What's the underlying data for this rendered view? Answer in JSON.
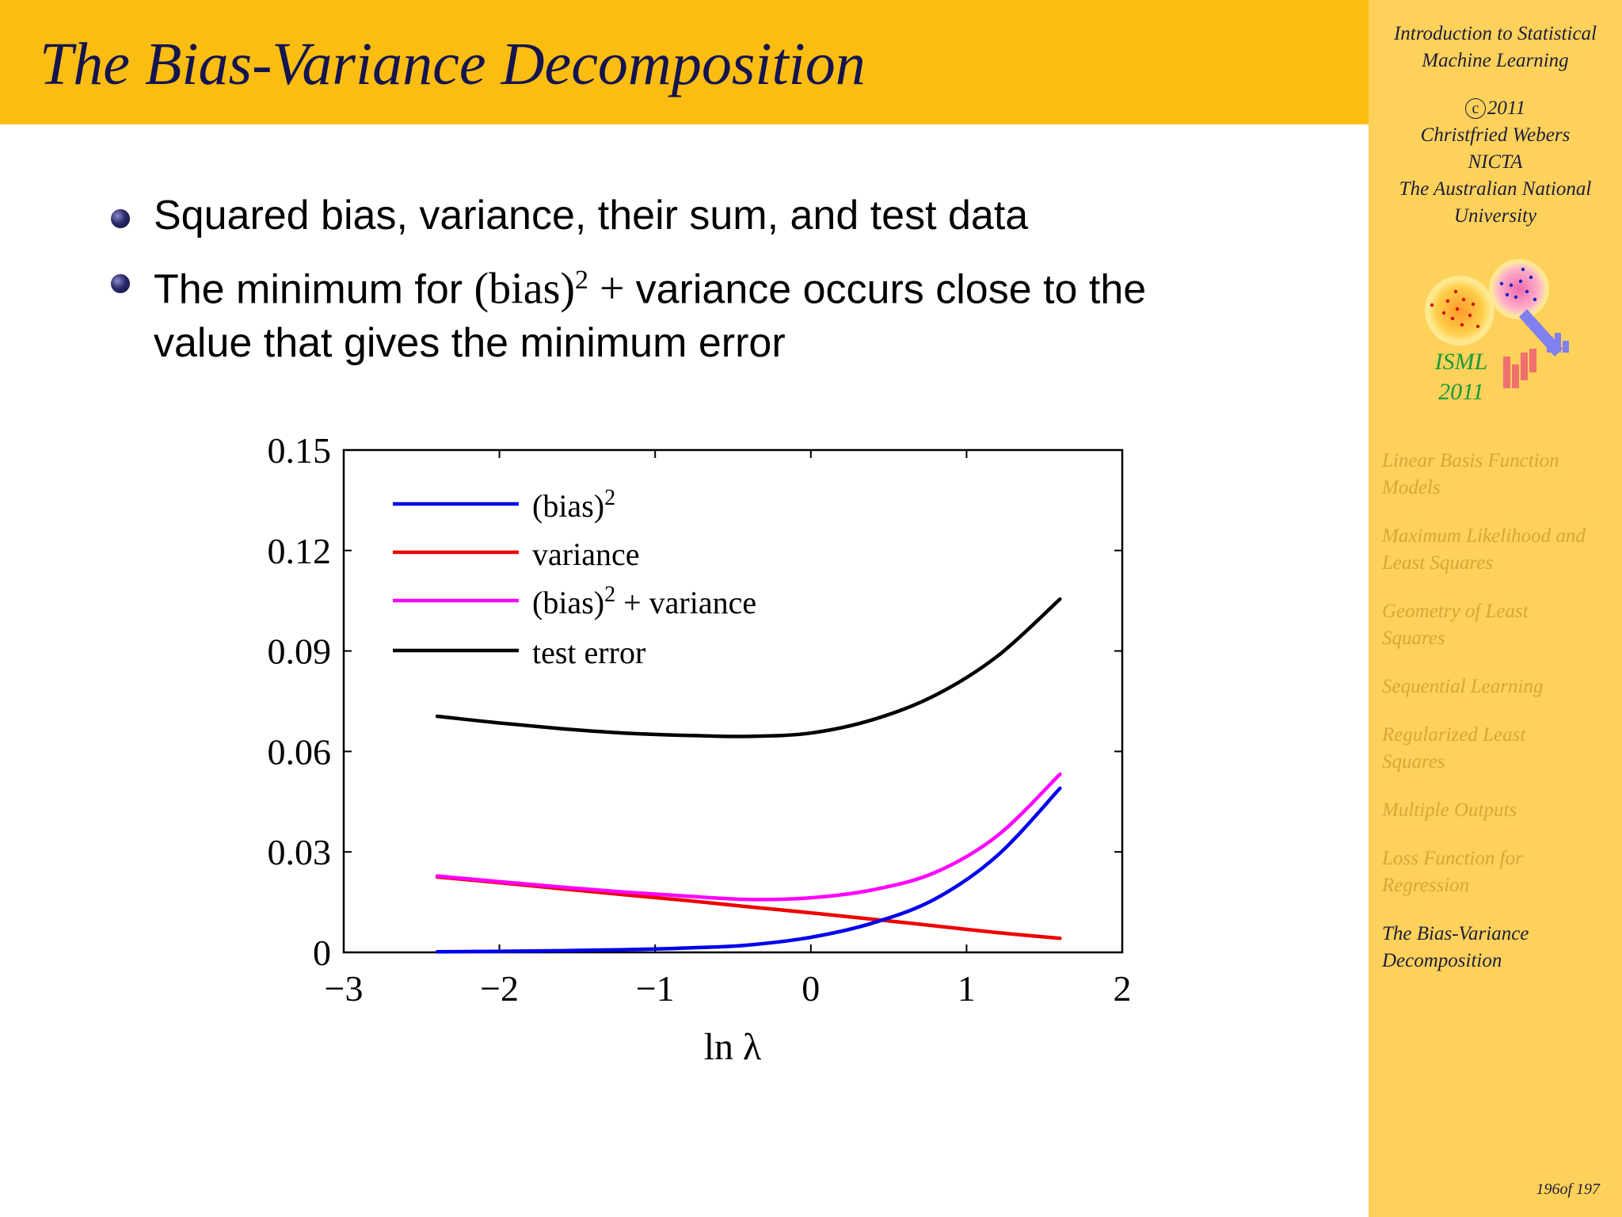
{
  "slide": {
    "title": "The Bias-Variance Decomposition",
    "bullets": [
      {
        "text": "Squared bias, variance, their sum, and test data"
      },
      {
        "pre": "The minimum for ",
        "math_base": "(bias)",
        "math_exp": "2",
        "math_op": " + ",
        "post": "variance occurs close to the",
        "line2": "value that gives the minimum error"
      }
    ]
  },
  "sidebar": {
    "course_line1": "Introduction to Statistical",
    "course_line2": "Machine Learning",
    "copyright_symbol": "c",
    "year": "2011",
    "author": "Christfried Webers",
    "org1": "NICTA",
    "org2": "The Australian National",
    "org3": "University",
    "logo_line1": "ISML",
    "logo_line2": "2011",
    "nav_items": [
      {
        "line1": "Linear Basis Function",
        "line2": "Models",
        "active": false
      },
      {
        "line1": "Maximum Likelihood and",
        "line2": "Least Squares",
        "active": false
      },
      {
        "line1": "Geometry of Least",
        "line2": "Squares",
        "active": false
      },
      {
        "line1": "Sequential Learning",
        "line2": "",
        "active": false
      },
      {
        "line1": "Regularized Least",
        "line2": "Squares",
        "active": false
      },
      {
        "line1": "Multiple Outputs",
        "line2": "",
        "active": false
      },
      {
        "line1": "Loss Function for",
        "line2": "Regression",
        "active": false
      },
      {
        "line1": "The Bias-Variance",
        "line2": "Decomposition",
        "active": true
      }
    ],
    "page_number": "196of 197"
  },
  "chart_data": {
    "type": "line",
    "xlabel": "ln λ",
    "ylabel": "",
    "xlim": [
      -3,
      2
    ],
    "ylim": [
      0,
      0.15
    ],
    "x_ticks": [
      "−3",
      "−2",
      "−1",
      "0",
      "1",
      "2"
    ],
    "x_tick_values": [
      -3,
      -2,
      -1,
      0,
      1,
      2
    ],
    "y_ticks": [
      "0",
      "0.03",
      "0.06",
      "0.09",
      "0.12",
      "0.15"
    ],
    "y_tick_values": [
      0,
      0.03,
      0.06,
      0.09,
      0.12,
      0.15
    ],
    "legend_position": "top-left",
    "x": [
      -2.4,
      -2.0,
      -1.6,
      -1.2,
      -0.8,
      -0.4,
      0.0,
      0.4,
      0.8,
      1.2,
      1.6
    ],
    "series": [
      {
        "name": "(bias)",
        "name_sup": "2",
        "color": "#0000ee",
        "values": [
          0.0002,
          0.0003,
          0.0005,
          0.0008,
          0.0013,
          0.0022,
          0.0045,
          0.0088,
          0.016,
          0.029,
          0.049
        ]
      },
      {
        "name": "variance",
        "name_sup": "",
        "color": "#ee0000",
        "values": [
          0.0225,
          0.0208,
          0.019,
          0.0172,
          0.0155,
          0.0136,
          0.0118,
          0.0099,
          0.0079,
          0.0059,
          0.0042
        ]
      },
      {
        "name": "(bias)",
        "name_sup": "2",
        "name_suffix": " + variance",
        "color": "#ff00ff",
        "values": [
          0.0228,
          0.0211,
          0.0195,
          0.018,
          0.0168,
          0.0158,
          0.0163,
          0.0187,
          0.0239,
          0.0349,
          0.0532
        ]
      },
      {
        "name": "test error",
        "name_sup": "",
        "color": "#000000",
        "values": [
          0.0705,
          0.0685,
          0.0668,
          0.0655,
          0.0648,
          0.0645,
          0.0655,
          0.0695,
          0.0768,
          0.0885,
          0.1055
        ]
      }
    ]
  }
}
